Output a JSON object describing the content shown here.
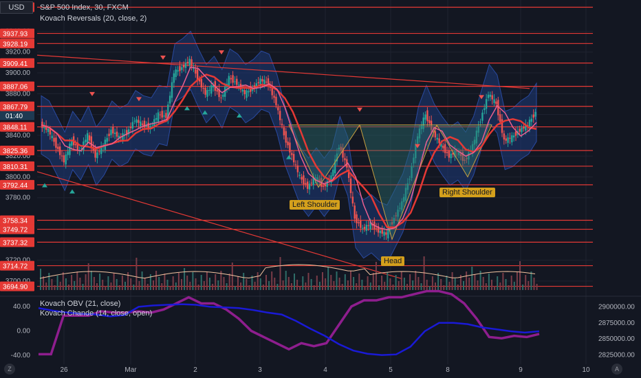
{
  "header": {
    "currency": "USD",
    "symbol_line": "S&P 500 Index, 30, FXCM",
    "indicator_line": "Kovach Reversals (20, close, 2)",
    "current_price": "3867.79",
    "countdown": "01:40"
  },
  "colors": {
    "background": "#131722",
    "level_line": "#e53935",
    "price_tag": "#e53935",
    "band_fill": "#1e3a7a",
    "ma_red": "#e53935",
    "ma_pink": "#ec6090",
    "candle_up": "#26a69a",
    "candle_down": "#ef5350",
    "pattern_fill": "#2a6b6b",
    "label_bg": "#d4a01c",
    "obv_line": "#1a1ad6",
    "chande_line": "#8e1e8e"
  },
  "chart_data": [
    {
      "type": "candlestick",
      "title": "S&P 500 Index, 30, FXCM",
      "x_ticks": [
        "26",
        "Mar",
        "2",
        "3",
        "4",
        "5",
        "8",
        "9",
        "10"
      ],
      "y_ticks": [
        3700,
        3720,
        3780,
        3800,
        3820,
        3840,
        3860,
        3880,
        3900,
        3920,
        3940
      ],
      "ylim": [
        3690,
        3970
      ],
      "horizontal_levels": [
        3963.07,
        3937.93,
        3928.19,
        3909.41,
        3887.06,
        3867.79,
        3848.11,
        3825.36,
        3810.31,
        3792.44,
        3758.34,
        3749.72,
        3737.32,
        3714.72,
        3694.9
      ],
      "price_path": [
        3850,
        3845,
        3830,
        3815,
        3835,
        3825,
        3840,
        3820,
        3830,
        3845,
        3838,
        3842,
        3855,
        3850,
        3848,
        3860,
        3858,
        3900,
        3905,
        3912,
        3895,
        3880,
        3888,
        3875,
        3895,
        3890,
        3880,
        3885,
        3893,
        3890,
        3870,
        3840,
        3820,
        3800,
        3790,
        3800,
        3790,
        3800,
        3830,
        3810,
        3760,
        3750,
        3755,
        3748,
        3745,
        3760,
        3775,
        3800,
        3840,
        3860,
        3842,
        3830,
        3820,
        3825,
        3815,
        3830,
        3855,
        3880,
        3870,
        3835,
        3838,
        3845,
        3850,
        3862
      ],
      "annotations": [
        "Left Shoulder",
        "Head",
        "Right Shoulder"
      ]
    },
    {
      "type": "line",
      "title": "Kovach OBV (21, close)",
      "y_ticks": [
        2825000,
        2850000,
        2875000,
        2900000
      ],
      "ylim": [
        2815000,
        2910000
      ],
      "values": [
        2898000,
        2894000,
        2891000,
        2889000,
        2888000,
        2885000,
        2887000,
        2900000,
        2902000,
        2903000,
        2904000,
        2903000,
        2900000,
        2899000,
        2898000,
        2895000,
        2891000,
        2888000,
        2878000,
        2866000,
        2855000,
        2842000,
        2832000,
        2827000,
        2825000,
        2826000,
        2838000,
        2862000,
        2875000,
        2875000,
        2873000,
        2868000,
        2865000,
        2862000,
        2860000,
        2862000
      ]
    },
    {
      "type": "line",
      "title": "Kovach Chande (14, close, open)",
      "y_ticks": [
        -40,
        0,
        40
      ],
      "ylim": [
        -50,
        50
      ],
      "values": [
        -38,
        -38,
        25,
        25,
        25,
        32,
        30,
        30,
        32,
        30,
        35,
        45,
        55,
        45,
        45,
        35,
        20,
        0,
        -10,
        -20,
        -30,
        -20,
        -25,
        -20,
        10,
        40,
        50,
        50,
        55,
        55,
        60,
        65,
        65,
        60,
        45,
        20,
        -10,
        -12,
        -8,
        -10,
        -5
      ]
    }
  ],
  "labels": {
    "left_shoulder": "Left Shoulder",
    "head": "Head",
    "right_shoulder": "Right Shoulder"
  },
  "footer": {
    "z_button": "Z",
    "a_button": "A"
  }
}
